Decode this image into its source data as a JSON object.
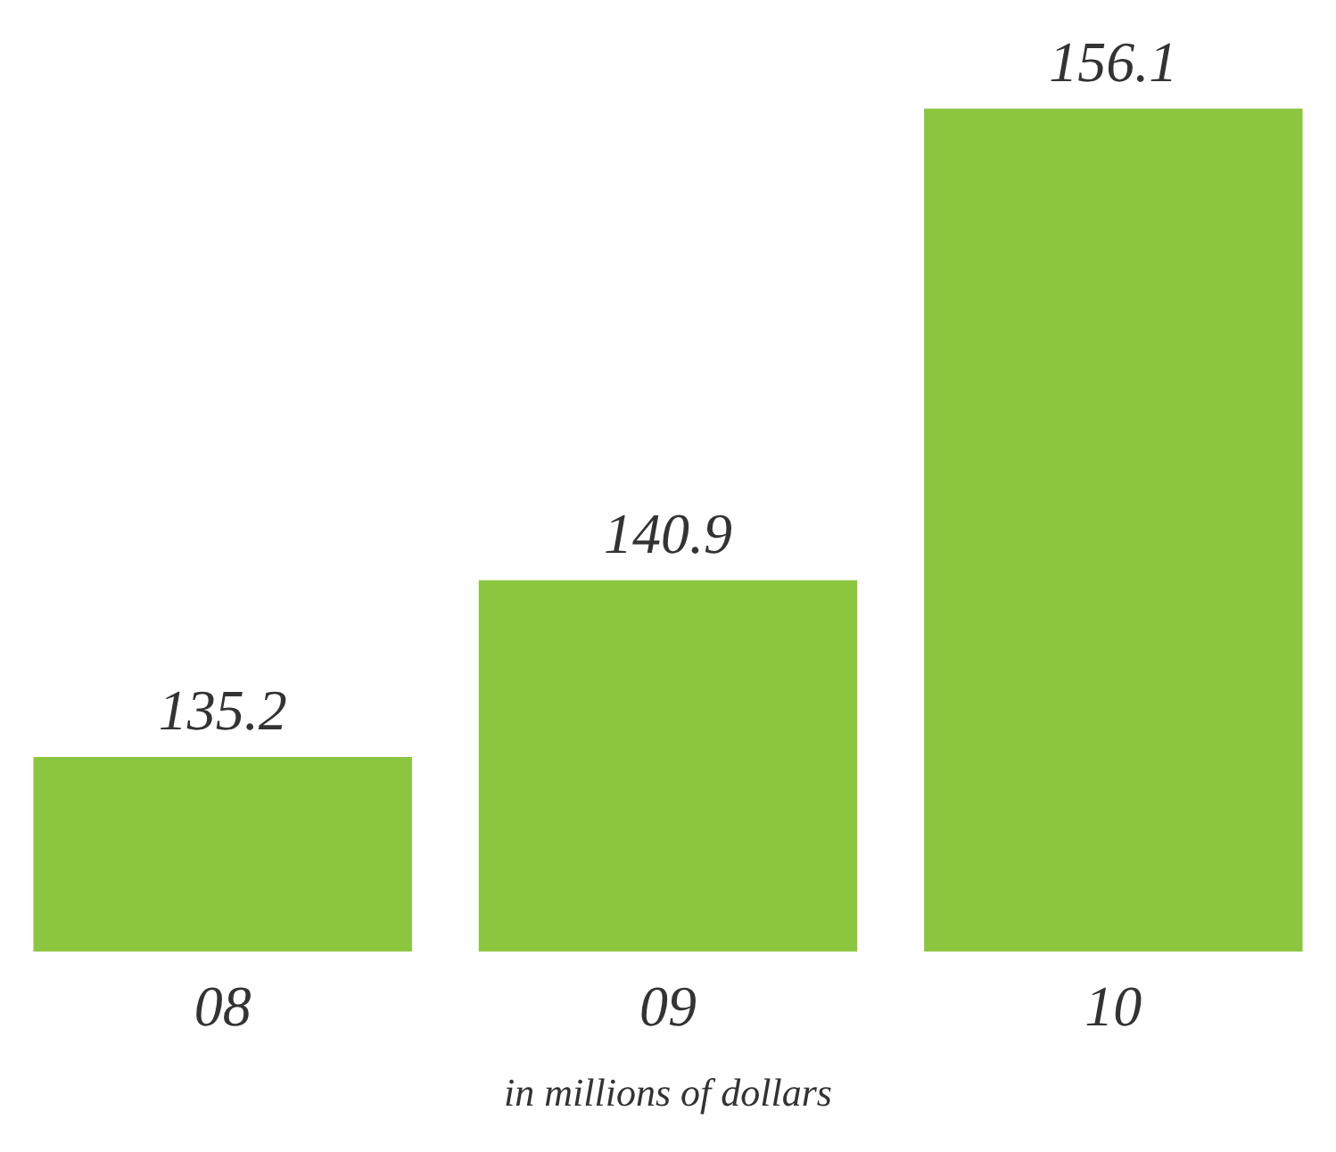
{
  "chart_data": {
    "type": "bar",
    "categories": [
      "08",
      "09",
      "10"
    ],
    "values": [
      135.2,
      140.9,
      156.1
    ],
    "color": "#8cc63f",
    "data_labels": true,
    "tick_labels": "x",
    "annotations": [
      "in millions of dollars"
    ]
  }
}
